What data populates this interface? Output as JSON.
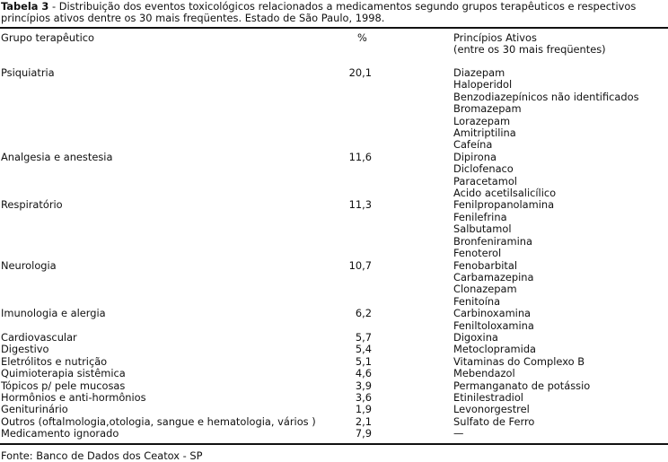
{
  "caption": {
    "label": "Tabela 3",
    "text": " - Distribuição dos eventos toxicológicos relacionados a medicamentos segundo grupos terapêuticos e respectivos princípios ativos dentre os 30 mais freqüentes. Estado de São Paulo, 1998."
  },
  "headers": {
    "group": "Grupo terapêutico",
    "percent": "%",
    "actives_line1": "Princípios Ativos",
    "actives_line2": "(entre os 30 mais freqüentes)"
  },
  "rows": [
    {
      "group": "Psiquiatria",
      "percent": "20,1",
      "actives": [
        "Diazepam",
        "Haloperidol",
        "Benzodiazepínicos não identificados",
        "Bromazepam",
        "Lorazepam",
        "Amitriptilina",
        "Cafeína"
      ]
    },
    {
      "group": "Analgesia e anestesia",
      "percent": "11,6",
      "actives": [
        "Dipirona",
        "Diclofenaco",
        "Paracetamol",
        "Acido acetilsalicílico"
      ]
    },
    {
      "group": "Respiratório",
      "percent": "11,3",
      "actives": [
        "Fenilpropanolamina",
        "Fenilefrina",
        "Salbutamol",
        "Bronfeniramina",
        "Fenoterol"
      ]
    },
    {
      "group": "Neurologia",
      "percent": "10,7",
      "actives": [
        "Fenobarbital",
        "Carbamazepina",
        "Clonazepam",
        "Fenitoína"
      ]
    },
    {
      "group": "Imunologia e alergia",
      "percent": "6,2",
      "actives": [
        "Carbinoxamina",
        "Feniltoloxamina"
      ]
    },
    {
      "group": "Cardiovascular",
      "percent": "5,7",
      "actives": [
        "Digoxina"
      ]
    },
    {
      "group": "Digestivo",
      "percent": "5,4",
      "actives": [
        "Metoclopramida"
      ]
    },
    {
      "group": "Eletrólitos e nutrição",
      "percent": "5,1",
      "actives": [
        "Vitaminas do Complexo B"
      ]
    },
    {
      "group": "Quimioterapia sistêmica",
      "percent": "4,6",
      "actives": [
        "Mebendazol"
      ]
    },
    {
      "group": "Tópicos p/ pele mucosas",
      "percent": "3,9",
      "actives": [
        "Permanganato de potássio"
      ]
    },
    {
      "group": "Hormônios e anti-hormônios",
      "percent": "3,6",
      "actives": [
        "Etinilestradiol"
      ]
    },
    {
      "group": "Geniturinário",
      "percent": "1,9",
      "actives": [
        "Levonorgestrel"
      ]
    },
    {
      "group": "Outros (oftalmologia,otologia, sangue e hematologia, vários )",
      "percent": "2,1",
      "actives": [
        "Sulfato de Ferro"
      ]
    },
    {
      "group": "Medicamento ignorado",
      "percent": "7,9",
      "actives": [
        "—"
      ]
    }
  ],
  "source": "Fonte: Banco de Dados dos Ceatox - SP"
}
